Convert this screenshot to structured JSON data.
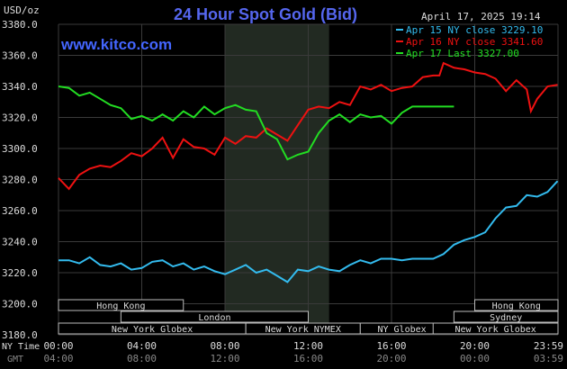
{
  "header": {
    "title": "24 Hour Spot Gold (Bid)",
    "unit": "USD/oz",
    "date": "April 17, 2025 19:14",
    "watermark": "www.kitco.com"
  },
  "legend": [
    {
      "label": "Apr 15 NY close 3229.10",
      "color": "#33bbee"
    },
    {
      "label": "Apr 16 NY close 3341.60",
      "color": "#ee1111"
    },
    {
      "label": "Apr 17 Last 3327.00",
      "color": "#22dd22"
    }
  ],
  "row_labels": {
    "ny_time": "NY Time",
    "gmt": "GMT"
  },
  "ny_ticks": [
    "00:00",
    "04:00",
    "08:00",
    "12:00",
    "16:00",
    "20:00",
    "23:59"
  ],
  "gmt_ticks": [
    "04:00",
    "08:00",
    "12:00",
    "16:00",
    "20:00",
    "00:00",
    "03:59"
  ],
  "sessions": [
    {
      "label": "Hong Kong",
      "start": 0,
      "end": 6
    },
    {
      "label": "London",
      "start": 3,
      "end": 12
    },
    {
      "label": "New York Globex",
      "start": 0,
      "end": 9
    },
    {
      "label": "New York NYMEX",
      "start": 9,
      "end": 14.5
    },
    {
      "label": "NY Globex",
      "start": 14.5,
      "end": 18.5
    },
    {
      "label": "Hong Kong",
      "start": 20,
      "end": 24
    },
    {
      "label": "Sydney",
      "start": 19,
      "end": 24
    },
    {
      "label": "New York Globex",
      "start": 18,
      "end": 24
    }
  ],
  "chart_data": {
    "type": "line",
    "title": "24 Hour Spot Gold (Bid)",
    "ylabel": "USD/oz",
    "ylim": [
      3180,
      3380
    ],
    "yticks": [
      "3380.0",
      "3360.0",
      "3340.0",
      "3320.0",
      "3300.0",
      "3280.0",
      "3260.0",
      "3240.0",
      "3220.0",
      "3200.0",
      "3180.0"
    ],
    "xlim": [
      0,
      24
    ],
    "grid": true,
    "legend_position": "top-right",
    "shaded_region": [
      8,
      13
    ],
    "series": [
      {
        "name": "Apr 15 NY close 3229.10",
        "color": "#33bbee",
        "points": [
          [
            0,
            3228
          ],
          [
            0.5,
            3228
          ],
          [
            1,
            3226
          ],
          [
            1.5,
            3230
          ],
          [
            2,
            3225
          ],
          [
            2.5,
            3224
          ],
          [
            3,
            3226
          ],
          [
            3.5,
            3222
          ],
          [
            4,
            3223
          ],
          [
            4.5,
            3227
          ],
          [
            5,
            3228
          ],
          [
            5.5,
            3224
          ],
          [
            6,
            3226
          ],
          [
            6.5,
            3222
          ],
          [
            7,
            3224
          ],
          [
            7.5,
            3221
          ],
          [
            8,
            3219
          ],
          [
            8.5,
            3222
          ],
          [
            9,
            3225
          ],
          [
            9.5,
            3220
          ],
          [
            10,
            3222
          ],
          [
            10.5,
            3218
          ],
          [
            11,
            3214
          ],
          [
            11.5,
            3222
          ],
          [
            12,
            3221
          ],
          [
            12.5,
            3224
          ],
          [
            13,
            3222
          ],
          [
            13.5,
            3221
          ],
          [
            14,
            3225
          ],
          [
            14.5,
            3228
          ],
          [
            15,
            3226
          ],
          [
            15.5,
            3229
          ],
          [
            16,
            3229
          ],
          [
            16.5,
            3228
          ],
          [
            17,
            3229
          ],
          [
            17.5,
            3229
          ],
          [
            18,
            3229
          ],
          [
            18.5,
            3232
          ],
          [
            19,
            3238
          ],
          [
            19.5,
            3241
          ],
          [
            20,
            3243
          ],
          [
            20.5,
            3246
          ],
          [
            21,
            3255
          ],
          [
            21.5,
            3262
          ],
          [
            22,
            3263
          ],
          [
            22.5,
            3270
          ],
          [
            23,
            3269
          ],
          [
            23.5,
            3272
          ],
          [
            23.98,
            3279
          ]
        ]
      },
      {
        "name": "Apr 16 NY close 3341.60",
        "color": "#ee1111",
        "points": [
          [
            0,
            3281
          ],
          [
            0.5,
            3274
          ],
          [
            1,
            3283
          ],
          [
            1.5,
            3287
          ],
          [
            2,
            3289
          ],
          [
            2.5,
            3288
          ],
          [
            3,
            3292
          ],
          [
            3.5,
            3297
          ],
          [
            4,
            3295
          ],
          [
            4.5,
            3300
          ],
          [
            5,
            3307
          ],
          [
            5.5,
            3294
          ],
          [
            6,
            3306
          ],
          [
            6.5,
            3301
          ],
          [
            7,
            3300
          ],
          [
            7.5,
            3296
          ],
          [
            8,
            3307
          ],
          [
            8.5,
            3303
          ],
          [
            9,
            3308
          ],
          [
            9.5,
            3307
          ],
          [
            10,
            3313
          ],
          [
            10.5,
            3309
          ],
          [
            11,
            3305
          ],
          [
            11.5,
            3315
          ],
          [
            12,
            3325
          ],
          [
            12.5,
            3327
          ],
          [
            13,
            3326
          ],
          [
            13.5,
            3330
          ],
          [
            14,
            3328
          ],
          [
            14.5,
            3340
          ],
          [
            15,
            3338
          ],
          [
            15.5,
            3341
          ],
          [
            16,
            3337
          ],
          [
            16.5,
            3339
          ],
          [
            17,
            3340
          ],
          [
            17.5,
            3346
          ],
          [
            18,
            3347
          ],
          [
            18.3,
            3347
          ],
          [
            18.5,
            3355
          ],
          [
            19,
            3352
          ],
          [
            19.5,
            3351
          ],
          [
            20,
            3349
          ],
          [
            20.5,
            3348
          ],
          [
            21,
            3345
          ],
          [
            21.5,
            3337
          ],
          [
            22,
            3344
          ],
          [
            22.5,
            3338
          ],
          [
            22.7,
            3324
          ],
          [
            23,
            3332
          ],
          [
            23.5,
            3340
          ],
          [
            23.98,
            3341
          ]
        ]
      },
      {
        "name": "Apr 17 Last 3327.00",
        "color": "#22dd22",
        "points": [
          [
            0,
            3340
          ],
          [
            0.5,
            3339
          ],
          [
            1,
            3334
          ],
          [
            1.5,
            3336
          ],
          [
            2,
            3332
          ],
          [
            2.5,
            3328
          ],
          [
            3,
            3326
          ],
          [
            3.5,
            3319
          ],
          [
            4,
            3321
          ],
          [
            4.5,
            3318
          ],
          [
            5,
            3322
          ],
          [
            5.5,
            3318
          ],
          [
            6,
            3324
          ],
          [
            6.5,
            3320
          ],
          [
            7,
            3327
          ],
          [
            7.5,
            3322
          ],
          [
            8,
            3326
          ],
          [
            8.5,
            3328
          ],
          [
            9,
            3325
          ],
          [
            9.5,
            3324
          ],
          [
            10,
            3310
          ],
          [
            10.5,
            3306
          ],
          [
            11,
            3293
          ],
          [
            11.5,
            3296
          ],
          [
            12,
            3298
          ],
          [
            12.5,
            3310
          ],
          [
            13,
            3318
          ],
          [
            13.5,
            3322
          ],
          [
            14,
            3317
          ],
          [
            14.5,
            3322
          ],
          [
            15,
            3320
          ],
          [
            15.5,
            3321
          ],
          [
            16,
            3316
          ],
          [
            16.5,
            3323
          ],
          [
            17,
            3327
          ],
          [
            18,
            3327
          ],
          [
            19,
            3327
          ]
        ]
      }
    ]
  }
}
